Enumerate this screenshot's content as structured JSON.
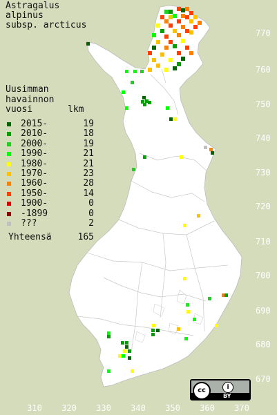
{
  "title": {
    "line1": "Astragalus",
    "line2": "alpinus",
    "line3": "subsp. arcticus"
  },
  "legend": {
    "header1": "Uusimman",
    "header2": "havainnon",
    "header3": "vuosi",
    "count_header": "lkm",
    "rows": [
      {
        "label": "2015-",
        "count": "19",
        "color": "#006400"
      },
      {
        "label": "2010-",
        "count": "18",
        "color": "#00a000"
      },
      {
        "label": "2000-",
        "count": "19",
        "color": "#20d020"
      },
      {
        "label": "1990-",
        "count": "21",
        "color": "#00ff00"
      },
      {
        "label": "1980-",
        "count": "21",
        "color": "#ffff00"
      },
      {
        "label": "1970-",
        "count": "23",
        "color": "#ffc000"
      },
      {
        "label": "1960-",
        "count": "28",
        "color": "#ff8000"
      },
      {
        "label": "1950-",
        "count": "14",
        "color": "#ff4000"
      },
      {
        "label": "1900-",
        "count": "0",
        "color": "#e00000"
      },
      {
        "label": "-1899",
        "count": "0",
        "color": "#900000"
      },
      {
        "label": " ???",
        "count": "2",
        "color": "#c0c0c0"
      }
    ],
    "total_label": "Yhteensä",
    "total_count": "165"
  },
  "axes": {
    "y_ticks": [
      "770",
      "760",
      "750",
      "740",
      "730",
      "720",
      "710",
      "700",
      "690",
      "680",
      "670"
    ],
    "x_ticks": [
      "310",
      "320",
      "330",
      "340",
      "350",
      "360",
      "370"
    ]
  },
  "license": {
    "cc_text": "cc",
    "by_text": "BY",
    "by_icon": "person-icon"
  },
  "colors": {
    "background": "#d4dcbb",
    "land": "#ffffff",
    "border": "#bcbcbc"
  }
}
